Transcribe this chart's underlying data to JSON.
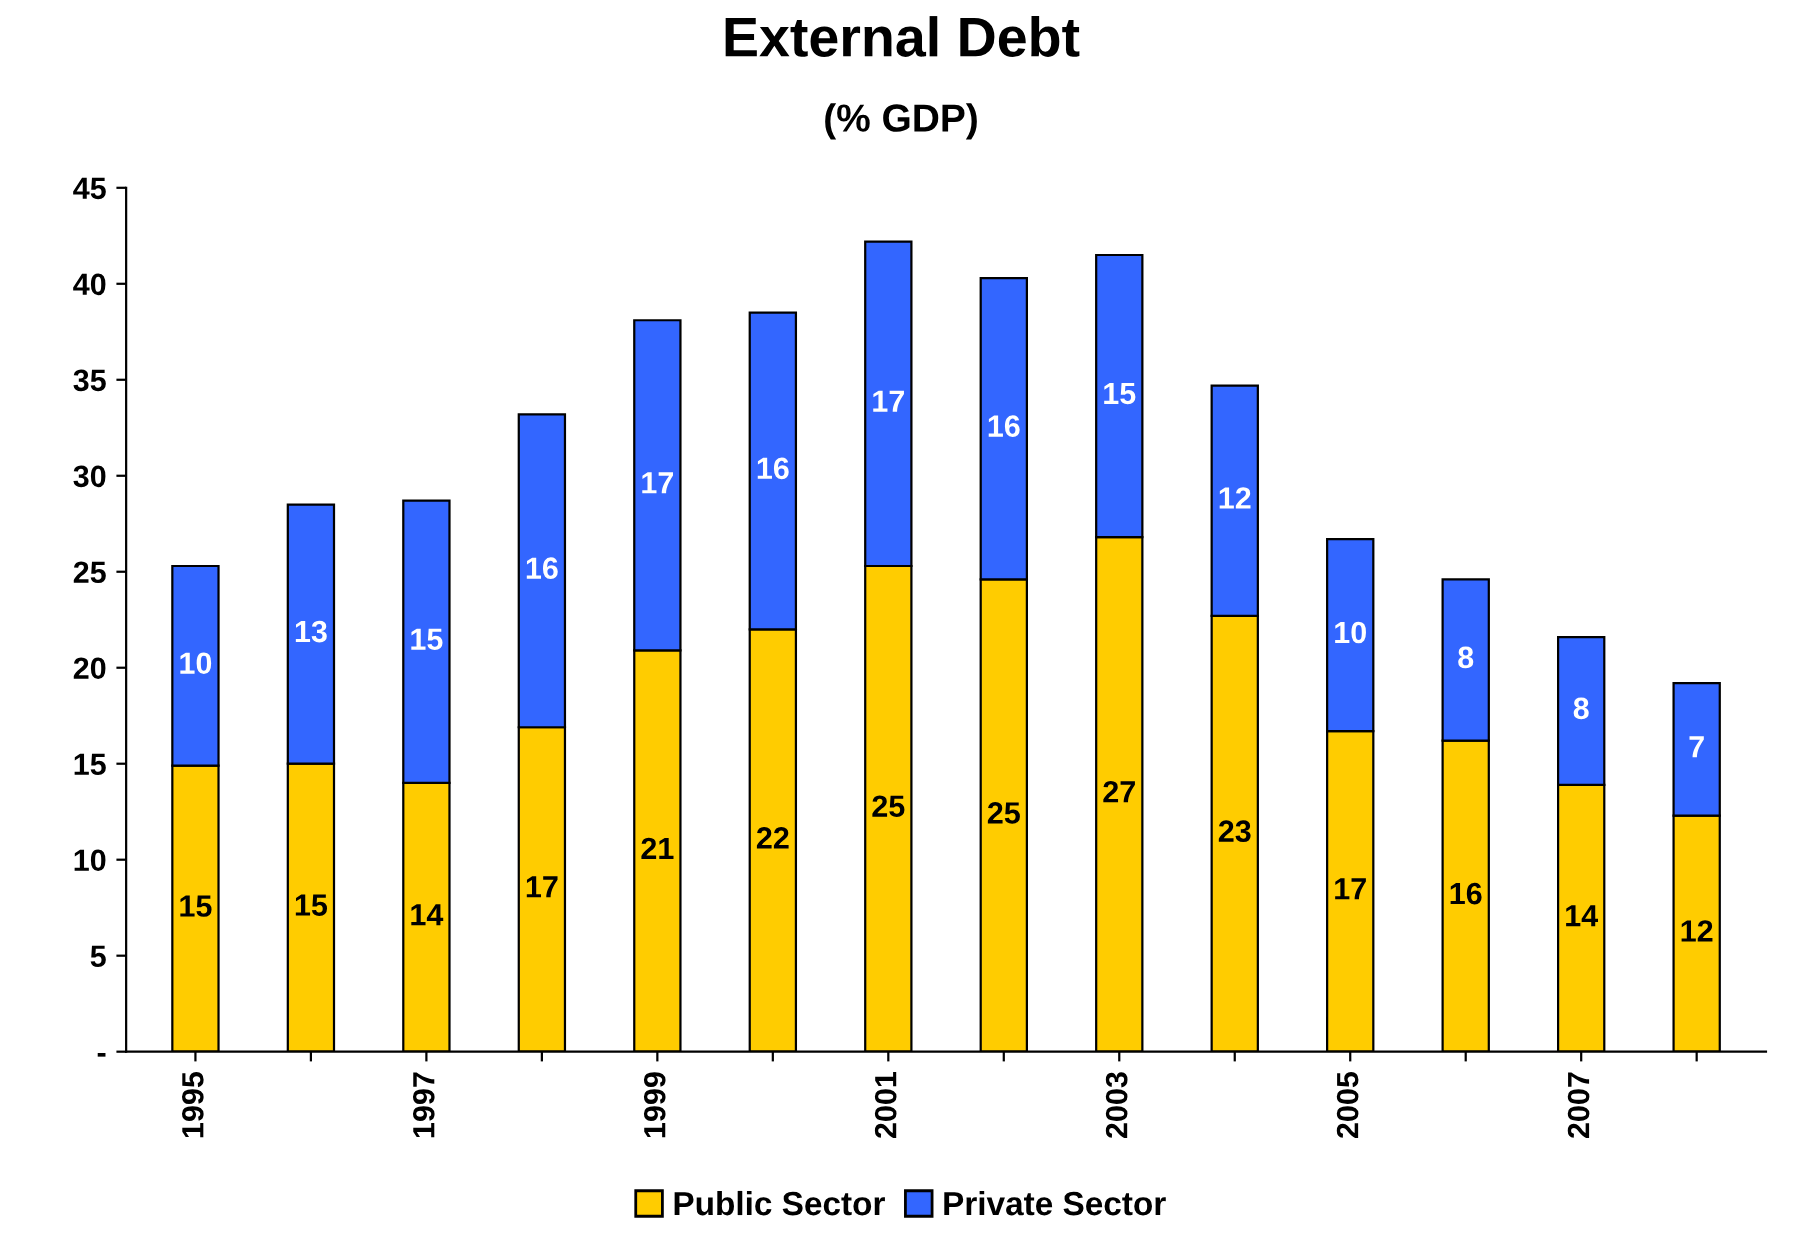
{
  "chart_data": {
    "type": "bar",
    "title": "External Debt",
    "subtitle": "(% GDP)",
    "stacked": true,
    "categories": [
      "1995",
      null,
      "1997",
      null,
      "1999",
      null,
      "2001",
      null,
      "2003",
      null,
      "2005",
      null,
      "2007",
      null
    ],
    "series": [
      {
        "name": "Public Sector",
        "color": "#ffcc00",
        "values": [
          14.9,
          15.0,
          14.0,
          16.9,
          20.9,
          22.0,
          25.3,
          24.6,
          26.8,
          22.7,
          16.7,
          16.2,
          13.9,
          12.3
        ],
        "value_labels": [
          "15",
          "15",
          "14",
          "17",
          "21",
          "22",
          "25",
          "25",
          "27",
          "23",
          "17",
          "16",
          "14",
          "12"
        ]
      },
      {
        "name": "Private Sector",
        "color": "#3366ff",
        "values": [
          10.4,
          13.5,
          14.7,
          16.3,
          17.2,
          16.5,
          16.9,
          15.7,
          14.7,
          12.0,
          10.0,
          8.4,
          7.7,
          6.9
        ],
        "value_labels": [
          "10",
          "13",
          "15",
          "16",
          "17",
          "16",
          "17",
          "16",
          "15",
          "12",
          "10",
          "8",
          "8",
          "7"
        ]
      }
    ],
    "ylim": [
      0,
      45
    ],
    "yticks": [
      {
        "value": 0,
        "label": "-"
      },
      5,
      10,
      15,
      20,
      25,
      30,
      35,
      40,
      45
    ],
    "grid": false,
    "legend": "bottom"
  }
}
